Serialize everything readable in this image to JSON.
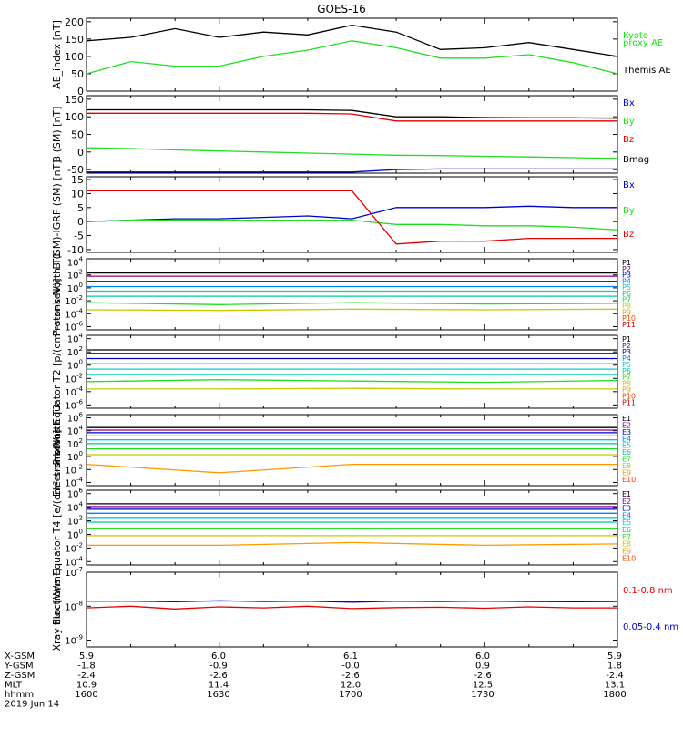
{
  "title": "GOES-16",
  "x_axis": {
    "rows": [
      {
        "label": "X-GSM",
        "values": [
          "5.9",
          "6.0",
          "6.1",
          "6.0",
          "5.9"
        ]
      },
      {
        "label": "Y-GSM",
        "values": [
          "-1.8",
          "-0.9",
          "-0.0",
          "0.9",
          "1.8"
        ]
      },
      {
        "label": "Z-GSM",
        "values": [
          "-2.4",
          "-2.6",
          "-2.6",
          "-2.6",
          "-2.4"
        ]
      },
      {
        "label": "MLT",
        "values": [
          "10.9",
          "11.4",
          "12.0",
          "12.5",
          "13.1"
        ]
      },
      {
        "label": "hhmm",
        "values": [
          "1600",
          "1630",
          "1700",
          "1730",
          "1800"
        ]
      }
    ],
    "date": "2019 Jun 14"
  },
  "colors": {
    "black": "#000000",
    "red": "#e60000",
    "green": "#22dd22",
    "blue": "#0000cc",
    "p_colors": [
      "#000000",
      "#8b008b",
      "#0000cc",
      "#0080ff",
      "#00cccc",
      "#00c8a0",
      "#22dd22",
      "#c8c800",
      "#ff9900",
      "#ff4400",
      "#cc0000"
    ],
    "e_colors": [
      "#000000",
      "#8b008b",
      "#0000cc",
      "#0080ff",
      "#00cccc",
      "#00c8a0",
      "#22dd22",
      "#c8c800",
      "#ff9900",
      "#ff4400",
      "#cc0000"
    ]
  },
  "chart_data": [
    {
      "type": "line",
      "ylabel": "AE_index [nT]",
      "yticks": [
        "0",
        "50",
        "100",
        "150",
        "200"
      ],
      "ylim": [
        0,
        210
      ],
      "x": [
        "1600",
        "1610",
        "1620",
        "1630",
        "1640",
        "1650",
        "1700",
        "1710",
        "1720",
        "1730",
        "1740",
        "1750",
        "1800"
      ],
      "series": [
        {
          "name": "Kyoto proxy AE",
          "color": "green",
          "values": [
            50,
            85,
            72,
            72,
            100,
            118,
            145,
            125,
            95,
            95,
            105,
            82,
            50
          ]
        },
        {
          "name": "Themis AE",
          "color": "black",
          "values": [
            145,
            155,
            180,
            155,
            170,
            162,
            190,
            170,
            120,
            125,
            140,
            120,
            100
          ]
        }
      ],
      "legend": [
        "Kyoto",
        "proxy AE",
        "Themis AE"
      ]
    },
    {
      "type": "line",
      "ylabel": "B (SM) [nT]",
      "yticks": [
        "-50",
        "0",
        "50",
        "100",
        "150"
      ],
      "ylim": [
        -60,
        160
      ],
      "x": [
        "1600",
        "1610",
        "1620",
        "1630",
        "1640",
        "1650",
        "1700",
        "1710",
        "1720",
        "1730",
        "1740",
        "1750",
        "1800"
      ],
      "series": [
        {
          "name": "Bx",
          "color": "blue",
          "values": [
            -57,
            -57,
            -57,
            -57,
            -57,
            -57,
            -57,
            -50,
            -48,
            -48,
            -48,
            -48,
            -48
          ]
        },
        {
          "name": "By",
          "color": "green",
          "values": [
            12,
            10,
            6,
            3,
            0,
            -3,
            -6,
            -9,
            -10,
            -12,
            -14,
            -16,
            -18
          ]
        },
        {
          "name": "Bz",
          "color": "red",
          "values": [
            110,
            110,
            110,
            110,
            110,
            110,
            108,
            88,
            88,
            88,
            88,
            88,
            88
          ]
        },
        {
          "name": "Bmag",
          "color": "black",
          "values": [
            120,
            120,
            120,
            120,
            120,
            120,
            118,
            100,
            100,
            98,
            97,
            97,
            96
          ]
        }
      ]
    },
    {
      "type": "line",
      "ylabel": "B (SM)-IGRF (SM) [nT]",
      "yticks": [
        "-10",
        "-5",
        "0",
        "5",
        "10",
        "15"
      ],
      "ylim": [
        -11,
        16
      ],
      "x": [
        "1600",
        "1610",
        "1620",
        "1630",
        "1640",
        "1650",
        "1700",
        "1710",
        "1720",
        "1730",
        "1740",
        "1750",
        "1800"
      ],
      "series": [
        {
          "name": "Bx",
          "color": "blue",
          "values": [
            0,
            0.5,
            1,
            1,
            1.5,
            2,
            1,
            5,
            5,
            5,
            5.5,
            5,
            5
          ]
        },
        {
          "name": "By",
          "color": "green",
          "values": [
            0,
            0.5,
            0.5,
            0.5,
            0.5,
            0.5,
            0.5,
            -1,
            -1,
            -1.5,
            -1.5,
            -2,
            -3
          ]
        },
        {
          "name": "Bz",
          "color": "red",
          "values": [
            11,
            11,
            11,
            11,
            11,
            11,
            11,
            -8,
            -7,
            -7,
            -6,
            -6,
            -6
          ]
        }
      ]
    },
    {
      "type": "line",
      "log": true,
      "ylabel": "Protons North T1",
      "yticks_exp": [
        -6,
        -4,
        -2,
        0,
        2,
        4
      ],
      "ylim_exp": [
        -6.5,
        4.5
      ],
      "x": [
        "1600",
        "1630",
        "1700",
        "1730",
        "1800"
      ],
      "series": [
        {
          "name": "P1",
          "values_exp": [
            2.3,
            2.3,
            2.3,
            2.3,
            2.3
          ]
        },
        {
          "name": "P2",
          "values_exp": [
            1.8,
            1.8,
            1.8,
            1.8,
            1.8
          ]
        },
        {
          "name": "P3",
          "values_exp": [
            1.0,
            1.0,
            1.0,
            1.0,
            1.0
          ]
        },
        {
          "name": "P4",
          "values_exp": [
            0.2,
            0.2,
            0.2,
            0.2,
            0.2
          ]
        },
        {
          "name": "P5",
          "values_exp": [
            -0.5,
            -0.5,
            -0.5,
            -0.5,
            -0.5
          ]
        },
        {
          "name": "P6",
          "values_exp": [
            -1.3,
            -1.3,
            -1.3,
            -1.3,
            -1.3
          ]
        },
        {
          "name": "P7",
          "values_exp": [
            -2.3,
            -2.6,
            -2.3,
            -2.5,
            -2.4
          ]
        },
        {
          "name": "P8",
          "values_exp": [
            -3.4,
            -3.5,
            -3.3,
            -3.4,
            -3.3
          ]
        }
      ],
      "legend": [
        "P1",
        "P2",
        "P3",
        "P4",
        "P5",
        "P6",
        "P7",
        "P8",
        "P9",
        "P10",
        "P11"
      ]
    },
    {
      "type": "line",
      "log": true,
      "ylabel": "Protons Equator T2 [p/(cm²-s-sr-keV)]",
      "yticks_exp": [
        -6,
        -4,
        -2,
        0,
        2,
        4
      ],
      "ylim_exp": [
        -6.5,
        4.5
      ],
      "x": [
        "1600",
        "1630",
        "1700",
        "1730",
        "1800"
      ],
      "series": [
        {
          "name": "P1",
          "values_exp": [
            2.3,
            2.3,
            2.3,
            2.3,
            2.3
          ]
        },
        {
          "name": "P2",
          "values_exp": [
            1.8,
            1.8,
            1.8,
            1.8,
            1.8
          ]
        },
        {
          "name": "P3",
          "values_exp": [
            1.0,
            1.0,
            1.0,
            1.0,
            1.0
          ]
        },
        {
          "name": "P4",
          "values_exp": [
            0.2,
            0.2,
            0.2,
            0.2,
            0.2
          ]
        },
        {
          "name": "P5",
          "values_exp": [
            -0.6,
            -0.6,
            -0.6,
            -0.6,
            -0.6
          ]
        },
        {
          "name": "P6",
          "values_exp": [
            -1.4,
            -1.4,
            -1.4,
            -1.4,
            -1.4
          ]
        },
        {
          "name": "P7",
          "values_exp": [
            -2.5,
            -2.2,
            -2.4,
            -2.6,
            -2.3
          ]
        },
        {
          "name": "P8",
          "values_exp": [
            -3.6,
            -3.6,
            -3.5,
            -3.6,
            -3.6
          ]
        }
      ],
      "legend": [
        "P1",
        "P2",
        "P3",
        "P4",
        "P5",
        "P6",
        "P7",
        "P8",
        "P9",
        "P10",
        "P11"
      ]
    },
    {
      "type": "line",
      "log": true,
      "ylabel": "Electrons North T3",
      "yticks_exp": [
        -4,
        -2,
        0,
        2,
        4,
        6
      ],
      "ylim_exp": [
        -4.5,
        6.5
      ],
      "x": [
        "1600",
        "1630",
        "1700",
        "1730",
        "1800"
      ],
      "series": [
        {
          "name": "E1",
          "values_exp": [
            4.5,
            4.5,
            4.5,
            4.5,
            4.5
          ]
        },
        {
          "name": "E2",
          "values_exp": [
            4.1,
            4.1,
            4.1,
            4.1,
            4.1
          ]
        },
        {
          "name": "E3",
          "values_exp": [
            3.7,
            3.7,
            3.7,
            3.7,
            3.7
          ]
        },
        {
          "name": "E4",
          "values_exp": [
            3.2,
            3.2,
            3.2,
            3.2,
            3.2
          ]
        },
        {
          "name": "E5",
          "values_exp": [
            2.6,
            2.6,
            2.6,
            2.6,
            2.6
          ]
        },
        {
          "name": "E6",
          "values_exp": [
            2.0,
            2.0,
            2.0,
            2.0,
            2.0
          ]
        },
        {
          "name": "E7",
          "values_exp": [
            1.2,
            1.2,
            1.2,
            1.2,
            1.2
          ]
        },
        {
          "name": "E8",
          "values_exp": [
            0.3,
            0.3,
            0.3,
            0.3,
            0.3
          ]
        },
        {
          "name": "E9",
          "values_exp": [
            -1.2,
            -2.5,
            -1.2,
            -1.2,
            -1.2
          ]
        }
      ],
      "legend": [
        "E1",
        "E2",
        "E3",
        "E4",
        "E5",
        "E6",
        "E7",
        "E8",
        "E9",
        "E10"
      ]
    },
    {
      "type": "line",
      "log": true,
      "ylabel": "Electrons Equator T4 [e/(cm²-s-sr-keV)]",
      "yticks_exp": [
        -4,
        -2,
        0,
        2,
        4,
        6
      ],
      "ylim_exp": [
        -4.5,
        6.5
      ],
      "x": [
        "1600",
        "1630",
        "1700",
        "1730",
        "1800"
      ],
      "series": [
        {
          "name": "E1",
          "values_exp": [
            4.5,
            4.5,
            4.5,
            4.5,
            4.5
          ]
        },
        {
          "name": "E2",
          "values_exp": [
            4.1,
            4.1,
            4.1,
            4.1,
            4.1
          ]
        },
        {
          "name": "E3",
          "values_exp": [
            3.7,
            3.7,
            3.7,
            3.7,
            3.7
          ]
        },
        {
          "name": "E4",
          "values_exp": [
            3.1,
            3.1,
            3.1,
            3.1,
            3.1
          ]
        },
        {
          "name": "E5",
          "values_exp": [
            2.5,
            2.5,
            2.5,
            2.5,
            2.5
          ]
        },
        {
          "name": "E6",
          "values_exp": [
            1.8,
            1.8,
            1.8,
            1.8,
            1.8
          ]
        },
        {
          "name": "E7",
          "values_exp": [
            0.9,
            0.9,
            0.9,
            0.9,
            0.9
          ]
        },
        {
          "name": "E8",
          "values_exp": [
            -0.2,
            -0.2,
            -0.2,
            -0.2,
            -0.2
          ]
        },
        {
          "name": "E9",
          "values_exp": [
            -1.6,
            -1.6,
            -1.2,
            -1.6,
            -1.4
          ]
        }
      ],
      "legend": [
        "E1",
        "E2",
        "E3",
        "E4",
        "E5",
        "E6",
        "E7",
        "E8",
        "E9",
        "E10"
      ]
    },
    {
      "type": "line",
      "log": true,
      "ylabel": "Xray flux [W/m²]",
      "yticks_exp": [
        -9,
        -8,
        -7
      ],
      "ylim_exp": [
        -9.2,
        -7
      ],
      "x": [
        "1600",
        "1610",
        "1620",
        "1630",
        "1640",
        "1650",
        "1700",
        "1710",
        "1720",
        "1730",
        "1740",
        "1750",
        "1800"
      ],
      "series": [
        {
          "name": "0.1-0.8 nm",
          "color": "red",
          "values_exp": [
            -8.05,
            -8.0,
            -8.08,
            -8.02,
            -8.05,
            -8.0,
            -8.07,
            -8.04,
            -8.03,
            -8.06,
            -8.02,
            -8.05,
            -8.05
          ]
        },
        {
          "name": "0.05-0.4 nm",
          "color": "blue",
          "values_exp": [
            -7.85,
            -7.85,
            -7.87,
            -7.84,
            -7.86,
            -7.85,
            -7.88,
            -7.85,
            -7.86,
            -7.85,
            -7.86,
            -7.87,
            -7.86
          ]
        }
      ],
      "legend": [
        "0.1-0.8 nm",
        "0.05-0.4 nm"
      ]
    }
  ]
}
